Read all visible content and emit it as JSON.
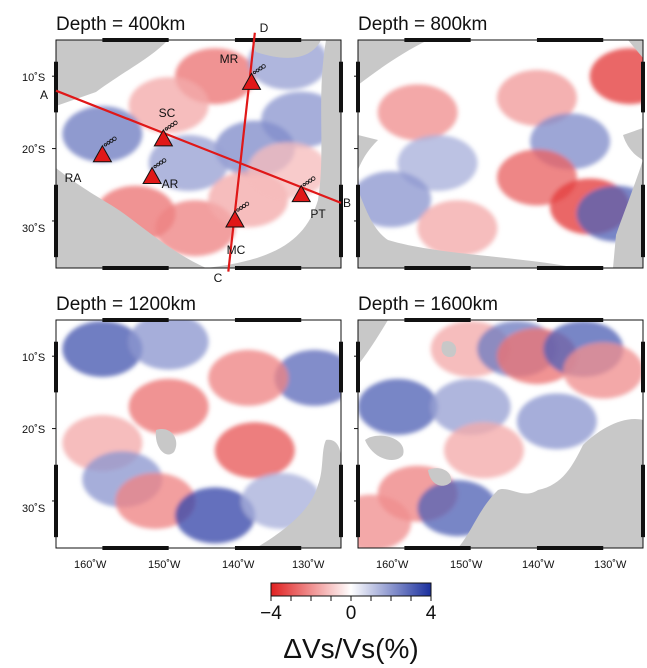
{
  "chart_data": {
    "type": "heatmap",
    "colorbar": {
      "min_label": "−4",
      "mid_label": "0",
      "max_label": "4",
      "range": [
        -4,
        4
      ],
      "label": "ΔVs/Vs(%)",
      "colors": {
        "negative": "#e02020",
        "zero": "#ffffff",
        "positive": "#1a2f9e",
        "no_data": "#c8c8c8"
      }
    },
    "x_ticks": [
      "160˚W",
      "150˚W",
      "140˚W",
      "130˚W"
    ],
    "y_ticks": [
      "10˚S",
      "20˚S",
      "30˚S"
    ],
    "panels": [
      {
        "title": "Depth = 400km",
        "section_letters": [
          "A",
          "B",
          "C",
          "D"
        ],
        "hotspots": [
          "MR",
          "SC",
          "RA",
          "AR",
          "MC",
          "PT"
        ],
        "blobs": [
          {
            "lon": -143,
            "lat": -10,
            "v": -2.5
          },
          {
            "lon": -150,
            "lat": -14,
            "v": -1.5
          },
          {
            "lon": -132,
            "lat": -8,
            "v": 1.8
          },
          {
            "lon": -130,
            "lat": -16,
            "v": 2.0
          },
          {
            "lon": -137,
            "lat": -20,
            "v": 2.2
          },
          {
            "lon": -160,
            "lat": -18,
            "v": 2.5
          },
          {
            "lon": -147,
            "lat": -22,
            "v": 1.8
          },
          {
            "lon": -155,
            "lat": -29,
            "v": -2.5
          },
          {
            "lon": -146,
            "lat": -31,
            "v": -2.2
          },
          {
            "lon": -138,
            "lat": -27,
            "v": -1.5
          },
          {
            "lon": -132,
            "lat": -23,
            "v": -1.2
          }
        ]
      },
      {
        "title": "Depth = 800km",
        "blobs": [
          {
            "lon": -140,
            "lat": -13,
            "v": -1.8
          },
          {
            "lon": -158,
            "lat": -15,
            "v": -2.0
          },
          {
            "lon": -126,
            "lat": -10,
            "v": -3.5
          },
          {
            "lon": -135,
            "lat": -19,
            "v": 2.2
          },
          {
            "lon": -155,
            "lat": -22,
            "v": 1.5
          },
          {
            "lon": -140,
            "lat": -24,
            "v": -2.8
          },
          {
            "lon": -132,
            "lat": -28,
            "v": -3.5
          },
          {
            "lon": -128,
            "lat": -29,
            "v": 3.0
          },
          {
            "lon": -162,
            "lat": -27,
            "v": 2.0
          },
          {
            "lon": -152,
            "lat": -31,
            "v": -1.5
          }
        ]
      },
      {
        "title": "Depth = 1200km",
        "blobs": [
          {
            "lon": -160,
            "lat": -9,
            "v": 3.2
          },
          {
            "lon": -150,
            "lat": -8,
            "v": 2.0
          },
          {
            "lon": -128,
            "lat": -13,
            "v": 2.8
          },
          {
            "lon": -138,
            "lat": -13,
            "v": -2.2
          },
          {
            "lon": -150,
            "lat": -17,
            "v": -2.5
          },
          {
            "lon": -137,
            "lat": -23,
            "v": -3.0
          },
          {
            "lon": -160,
            "lat": -22,
            "v": -1.5
          },
          {
            "lon": -157,
            "lat": -27,
            "v": 2.0
          },
          {
            "lon": -152,
            "lat": -30,
            "v": -2.2
          },
          {
            "lon": -143,
            "lat": -32,
            "v": 3.5
          },
          {
            "lon": -133,
            "lat": -30,
            "v": 1.5
          }
        ]
      },
      {
        "title": "Depth = 1600km",
        "blobs": [
          {
            "lon": -150,
            "lat": -9,
            "v": -1.5
          },
          {
            "lon": -143,
            "lat": -9,
            "v": 2.5
          },
          {
            "lon": -140,
            "lat": -10,
            "v": -2.5
          },
          {
            "lon": -133,
            "lat": -9,
            "v": 3.0
          },
          {
            "lon": -130,
            "lat": -12,
            "v": -2.0
          },
          {
            "lon": -161,
            "lat": -17,
            "v": 3.0
          },
          {
            "lon": -150,
            "lat": -17,
            "v": 1.8
          },
          {
            "lon": -148,
            "lat": -23,
            "v": -1.5
          },
          {
            "lon": -137,
            "lat": -19,
            "v": 2.0
          },
          {
            "lon": -158,
            "lat": -29,
            "v": -2.2
          },
          {
            "lon": -152,
            "lat": -31,
            "v": 3.0
          },
          {
            "lon": -165,
            "lat": -33,
            "v": -2.0
          }
        ]
      }
    ]
  }
}
